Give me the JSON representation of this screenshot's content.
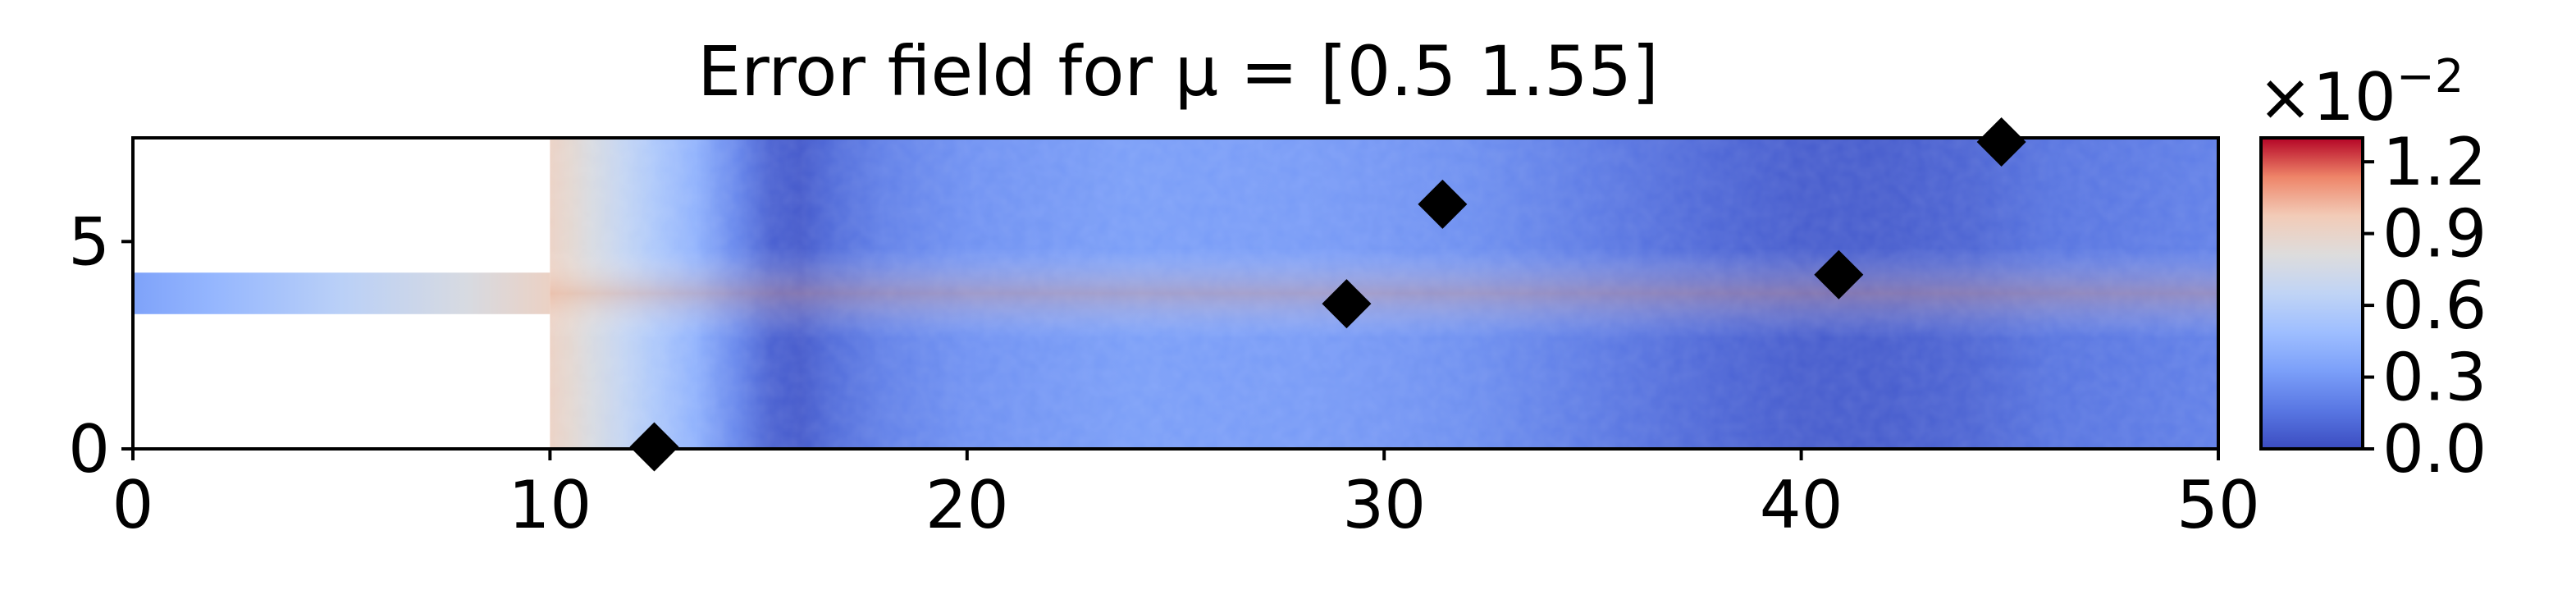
{
  "chart_data": {
    "type": "heatmap",
    "title": "Error field for μ = [0.5  1.55]",
    "xlabel": "",
    "ylabel": "",
    "xlim": [
      0,
      50
    ],
    "ylim": [
      0,
      7.5
    ],
    "x_ticks": [
      "0",
      "10",
      "20",
      "30",
      "40",
      "50"
    ],
    "x_tick_values": [
      0,
      10,
      20,
      30,
      40,
      50
    ],
    "y_ticks": [
      "0",
      "5"
    ],
    "y_tick_values": [
      0,
      5
    ],
    "domain": {
      "inlet_channel": {
        "x": [
          0,
          10
        ],
        "y": [
          3.25,
          4.25
        ]
      },
      "main_chamber": {
        "x": [
          10,
          50
        ],
        "y": [
          0,
          7.5
        ]
      }
    },
    "field_profile_x": [
      0,
      2,
      5,
      8,
      10,
      10.5,
      11,
      11.8,
      12.5,
      13.5,
      14.5,
      15.3,
      16,
      16.8,
      18,
      20,
      24,
      28,
      30,
      32,
      35,
      38,
      40,
      42,
      44,
      46,
      48,
      50
    ],
    "field_profile_values": [
      0.34,
      0.45,
      0.62,
      0.78,
      0.92,
      0.86,
      0.78,
      0.66,
      0.56,
      0.42,
      0.22,
      0.08,
      0.05,
      0.12,
      0.2,
      0.27,
      0.32,
      0.31,
      0.29,
      0.26,
      0.18,
      0.1,
      0.06,
      0.06,
      0.09,
      0.15,
      0.17,
      0.2
    ],
    "markers": [
      {
        "x": 12.5,
        "y": 0.05
      },
      {
        "x": 29.1,
        "y": 3.5
      },
      {
        "x": 31.4,
        "y": 5.9
      },
      {
        "x": 40.9,
        "y": 4.2
      },
      {
        "x": 44.8,
        "y": 7.4
      }
    ],
    "colorbar": {
      "colormap": "coolwarm",
      "min": 0.0,
      "max": 1.3,
      "ticks": [
        "0.0",
        "0.3",
        "0.6",
        "0.9",
        "1.2"
      ],
      "tick_values": [
        0.0,
        0.3,
        0.6,
        0.9,
        1.2
      ],
      "multiplier_base": "×10",
      "multiplier_exponent": "−2"
    },
    "colors": {
      "cold": "#3b4cc0",
      "neutral": "#dddcdc",
      "hot": "#b40426",
      "marker": "#000000"
    }
  }
}
